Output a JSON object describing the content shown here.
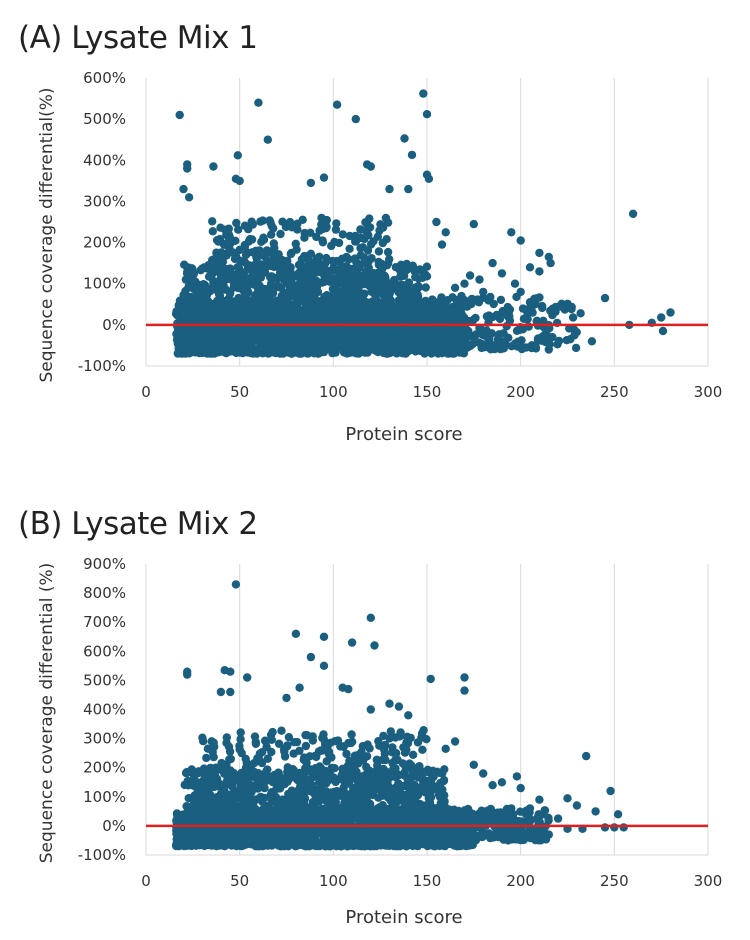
{
  "chart_data": [
    {
      "type": "scatter",
      "title": "(A) Lysate Mix 1",
      "xlabel": "Protein score",
      "ylabel": "Sequence coverage differential(%)",
      "xlim": [
        0,
        300
      ],
      "ylim": [
        -100,
        600
      ],
      "xticks": [
        "0",
        "50",
        "100",
        "150",
        "200",
        "250",
        "300"
      ],
      "yticks": [
        "-100%",
        "0%",
        "100%",
        "200%",
        "300%",
        "400%",
        "500%",
        "600%"
      ],
      "grid": "vertical",
      "point_color": "#1a5f7f",
      "reference_line": {
        "y": 0,
        "color": "#e02020"
      },
      "density_blocks": [
        {
          "x": [
            16,
            170
          ],
          "y": [
            -70,
            60
          ],
          "n": 1700
        },
        {
          "x": [
            20,
            150
          ],
          "y": [
            -30,
            150
          ],
          "n": 950
        },
        {
          "x": [
            35,
            130
          ],
          "y": [
            100,
            260
          ],
          "n": 260
        },
        {
          "x": [
            150,
            230
          ],
          "y": [
            -60,
            70
          ],
          "n": 220
        }
      ],
      "points": [
        [
          18,
          510
        ],
        [
          60,
          540
        ],
        [
          102,
          535
        ],
        [
          148,
          562
        ],
        [
          150,
          512
        ],
        [
          112,
          500
        ],
        [
          65,
          450
        ],
        [
          138,
          453
        ],
        [
          142,
          413
        ],
        [
          49,
          412
        ],
        [
          22,
          390
        ],
        [
          22,
          380
        ],
        [
          36,
          385
        ],
        [
          118,
          390
        ],
        [
          120,
          385
        ],
        [
          150,
          365
        ],
        [
          151,
          355
        ],
        [
          95,
          358
        ],
        [
          88,
          345
        ],
        [
          50,
          350
        ],
        [
          48,
          355
        ],
        [
          130,
          330
        ],
        [
          140,
          330
        ],
        [
          20,
          330
        ],
        [
          23,
          310
        ],
        [
          260,
          270
        ],
        [
          155,
          250
        ],
        [
          175,
          245
        ],
        [
          195,
          225
        ],
        [
          200,
          205
        ],
        [
          160,
          225
        ],
        [
          158,
          195
        ],
        [
          210,
          175
        ],
        [
          215,
          165
        ],
        [
          216,
          150
        ],
        [
          205,
          140
        ],
        [
          210,
          130
        ],
        [
          185,
          150
        ],
        [
          190,
          125
        ],
        [
          178,
          110
        ],
        [
          245,
          65
        ],
        [
          222,
          48
        ],
        [
          232,
          28
        ],
        [
          280,
          30
        ],
        [
          275,
          18
        ],
        [
          270,
          5
        ],
        [
          276,
          -15
        ],
        [
          258,
          0
        ],
        [
          238,
          -40
        ],
        [
          208,
          -55
        ],
        [
          215,
          -60
        ],
        [
          228,
          18
        ],
        [
          200,
          80
        ],
        [
          205,
          55
        ],
        [
          197,
          100
        ],
        [
          180,
          80
        ],
        [
          170,
          100
        ],
        [
          165,
          90
        ],
        [
          173,
          120
        ]
      ]
    },
    {
      "type": "scatter",
      "title": "(B) Lysate Mix 2",
      "xlabel": "Protein score",
      "ylabel": "Sequence coverage differential (%)",
      "xlim": [
        0,
        300
      ],
      "ylim": [
        -100,
        900
      ],
      "xticks": [
        "0",
        "50",
        "100",
        "150",
        "200",
        "250",
        "300"
      ],
      "yticks": [
        "-100%",
        "0%",
        "100%",
        "200%",
        "300%",
        "400%",
        "500%",
        "600%",
        "700%",
        "800%",
        "900%"
      ],
      "grid": "vertical",
      "point_color": "#1a5f7f",
      "reference_line": {
        "y": 0,
        "color": "#e02020"
      },
      "density_blocks": [
        {
          "x": [
            16,
            175
          ],
          "y": [
            -70,
            60
          ],
          "n": 1800
        },
        {
          "x": [
            20,
            160
          ],
          "y": [
            -20,
            200
          ],
          "n": 1000
        },
        {
          "x": [
            30,
            150
          ],
          "y": [
            150,
            330
          ],
          "n": 230
        },
        {
          "x": [
            160,
            215
          ],
          "y": [
            -50,
            60
          ],
          "n": 220
        }
      ],
      "points": [
        [
          48,
          830
        ],
        [
          120,
          715
        ],
        [
          80,
          660
        ],
        [
          95,
          650
        ],
        [
          110,
          630
        ],
        [
          122,
          620
        ],
        [
          88,
          580
        ],
        [
          95,
          550
        ],
        [
          54,
          510
        ],
        [
          22,
          530
        ],
        [
          22,
          520
        ],
        [
          42,
          535
        ],
        [
          45,
          530
        ],
        [
          40,
          460
        ],
        [
          45,
          460
        ],
        [
          152,
          505
        ],
        [
          170,
          510
        ],
        [
          170,
          465
        ],
        [
          105,
          475
        ],
        [
          108,
          470
        ],
        [
          82,
          475
        ],
        [
          75,
          440
        ],
        [
          130,
          420
        ],
        [
          135,
          410
        ],
        [
          120,
          400
        ],
        [
          140,
          380
        ],
        [
          235,
          240
        ],
        [
          248,
          120
        ],
        [
          225,
          95
        ],
        [
          230,
          70
        ],
        [
          240,
          50
        ],
        [
          252,
          40
        ],
        [
          255,
          -5
        ],
        [
          250,
          -5
        ],
        [
          245,
          -5
        ],
        [
          233,
          -10
        ],
        [
          225,
          -10
        ],
        [
          210,
          90
        ],
        [
          198,
          170
        ],
        [
          190,
          150
        ],
        [
          205,
          60
        ],
        [
          160,
          265
        ],
        [
          165,
          290
        ],
        [
          175,
          210
        ],
        [
          180,
          180
        ],
        [
          185,
          140
        ],
        [
          200,
          130
        ],
        [
          215,
          -30
        ],
        [
          220,
          25
        ],
        [
          195,
          60
        ]
      ]
    }
  ]
}
